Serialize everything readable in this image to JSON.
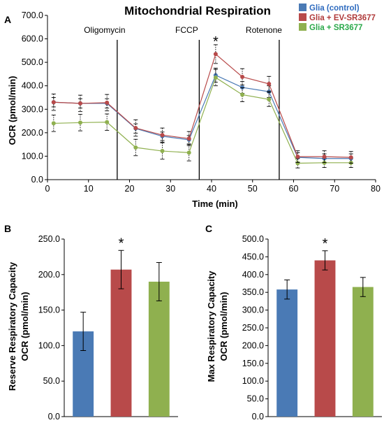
{
  "colors": {
    "control": "#4a7ab5",
    "ev": "#b84a4a",
    "sr": "#8fb04f",
    "legend_text_control": "#2e6bbf",
    "legend_text_ev": "#b03a3a",
    "legend_text_sr": "#2aa84a"
  },
  "chart_data": [
    {
      "panel": "A",
      "type": "line",
      "title": "Mitochondrial Respiration",
      "xlabel": "Time (min)",
      "ylabel": "OCR (pmol/min)",
      "xlim": [
        0,
        80
      ],
      "ylim": [
        0,
        700
      ],
      "xticks": [
        "0",
        "10",
        "20",
        "30",
        "40",
        "50",
        "60",
        "70",
        "80"
      ],
      "yticks": [
        "0.0",
        "100.0",
        "200.0",
        "300.0",
        "400.0",
        "500.0",
        "600.0",
        "700.0"
      ],
      "grid": false,
      "legend": "top-right",
      "injections": [
        {
          "label": "Oligomycin",
          "x": 17
        },
        {
          "label": "FCCP",
          "x": 37
        },
        {
          "label": "Rotenone",
          "x": 56.5
        }
      ],
      "annotations": [
        {
          "text": "*",
          "x": 41,
          "y": 590
        }
      ],
      "x": [
        1.5,
        8,
        14.5,
        21.5,
        28,
        34.5,
        41,
        47.5,
        54,
        61,
        67.5,
        74
      ],
      "series": [
        {
          "name": "Glia (control)",
          "color_key": "control",
          "values": [
            330,
            325,
            325,
            218,
            185,
            170,
            445,
            393,
            375,
            95,
            90,
            90
          ],
          "errors": [
            20,
            20,
            20,
            20,
            18,
            18,
            30,
            25,
            25,
            20,
            20,
            20
          ]
        },
        {
          "name": "Glia + EV-SR3677",
          "color_key": "ev",
          "values": [
            330,
            325,
            328,
            220,
            190,
            175,
            535,
            438,
            408,
            98,
            98,
            95
          ],
          "errors": [
            35,
            35,
            35,
            35,
            30,
            30,
            40,
            35,
            32,
            25,
            25,
            25
          ]
        },
        {
          "name": "Glia + SR3677",
          "color_key": "sr",
          "values": [
            240,
            243,
            245,
            137,
            122,
            115,
            435,
            362,
            342,
            70,
            72,
            72
          ],
          "errors": [
            35,
            35,
            35,
            35,
            35,
            35,
            35,
            30,
            30,
            20,
            20,
            20
          ]
        }
      ]
    },
    {
      "panel": "B",
      "type": "bar",
      "ylabel_line1": "Reserve  Respiratory Capacity",
      "ylabel_line2": "OCR (pmol/min)",
      "ylim": [
        0,
        250
      ],
      "yticks": [
        "0.0",
        "50.0",
        "100.0",
        "150.0",
        "200.0",
        "250.0"
      ],
      "categories": [
        "Glia (control)",
        "Glia + EV-SR3677",
        "Glia + SR3677"
      ],
      "values": [
        120,
        207,
        190
      ],
      "errors": [
        27,
        27,
        27
      ],
      "annotations": [
        {
          "text": "*",
          "bar": 1
        }
      ]
    },
    {
      "panel": "C",
      "type": "bar",
      "ylabel_line1": "Max  Respiratory Capacity",
      "ylabel_line2": "OCR (pmol/min)",
      "ylim": [
        0,
        500
      ],
      "yticks": [
        "0.0",
        "50.0",
        "100.0",
        "150.0",
        "200.0",
        "250.0",
        "300.0",
        "350.0",
        "400.0",
        "450.0",
        "500.0"
      ],
      "categories": [
        "Glia (control)",
        "Glia + EV-SR3677",
        "Glia + SR3677"
      ],
      "values": [
        358,
        440,
        365
      ],
      "errors": [
        27,
        27,
        27
      ],
      "annotations": [
        {
          "text": "*",
          "bar": 1
        }
      ]
    }
  ]
}
